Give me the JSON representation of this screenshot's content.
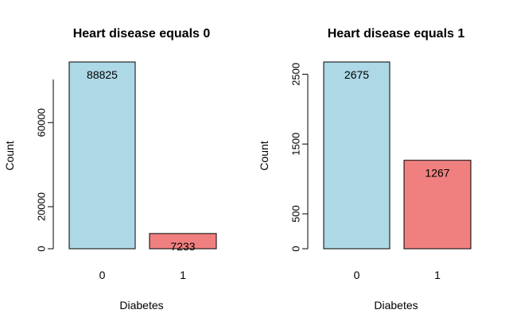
{
  "chart_data": [
    {
      "type": "bar",
      "title": "Heart disease equals 0",
      "xlabel": "Diabetes",
      "ylabel": "Count",
      "categories": [
        "0",
        "1"
      ],
      "values": [
        88825,
        7233
      ],
      "data_labels": [
        "88825",
        "7233"
      ],
      "colors": [
        "#add8e6",
        "#f08080"
      ],
      "yticks": [
        0,
        20000,
        60000
      ],
      "ytick_labels": [
        "0",
        "20000",
        "60000"
      ],
      "ylim": [
        0,
        88825
      ]
    },
    {
      "type": "bar",
      "title": "Heart disease equals 1",
      "xlabel": "Diabetes",
      "ylabel": "Count",
      "categories": [
        "0",
        "1"
      ],
      "values": [
        2675,
        1267
      ],
      "data_labels": [
        "2675",
        "1267"
      ],
      "colors": [
        "#add8e6",
        "#f08080"
      ],
      "yticks": [
        0,
        500,
        1500,
        2500
      ],
      "ytick_labels": [
        "0",
        "500",
        "1500",
        "2500"
      ],
      "ylim": [
        0,
        2675
      ]
    }
  ]
}
